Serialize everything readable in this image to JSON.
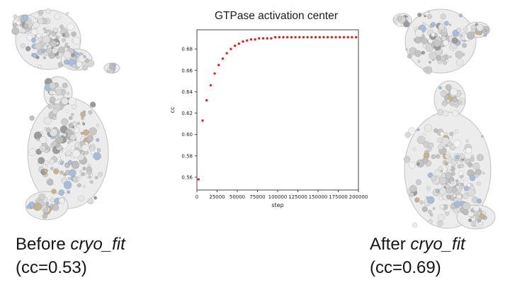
{
  "figure": {
    "background": "#ffffff"
  },
  "captions": {
    "before": {
      "prefix": "Before ",
      "italic": "cryo_fit",
      "cc": "(cc=0.53)"
    },
    "after": {
      "prefix": "After ",
      "italic": "cryo_fit",
      "cc": "(cc=0.69)"
    }
  },
  "molecules": {
    "before_label": "cryo-EM density map with fitted model, before fitting",
    "after_label": "cryo-EM density map with fitted model, after fitting"
  },
  "chart_data": {
    "type": "scatter",
    "title": "GTPase activation center",
    "xlabel": "step",
    "ylabel": "cc",
    "xlim": [
      0,
      200000
    ],
    "ylim": [
      0.548,
      0.698
    ],
    "xticks": [
      0,
      25000,
      50000,
      75000,
      100000,
      125000,
      150000,
      175000,
      200000
    ],
    "yticks": [
      0.56,
      0.58,
      0.6,
      0.62,
      0.64,
      0.66,
      0.68
    ],
    "grid": false,
    "legend": null,
    "marker_color": "#d62728",
    "points": [
      [
        2000,
        0.558
      ],
      [
        7000,
        0.613
      ],
      [
        12000,
        0.632
      ],
      [
        17000,
        0.646
      ],
      [
        22000,
        0.657
      ],
      [
        27000,
        0.665
      ],
      [
        32000,
        0.671
      ],
      [
        37000,
        0.676
      ],
      [
        42000,
        0.68
      ],
      [
        47000,
        0.683
      ],
      [
        52000,
        0.685
      ],
      [
        57000,
        0.687
      ],
      [
        62000,
        0.688
      ],
      [
        67000,
        0.689
      ],
      [
        72000,
        0.689
      ],
      [
        77000,
        0.69
      ],
      [
        82000,
        0.69
      ],
      [
        87000,
        0.69
      ],
      [
        92000,
        0.69
      ],
      [
        97000,
        0.691
      ],
      [
        102000,
        0.691
      ],
      [
        107000,
        0.691
      ],
      [
        112000,
        0.691
      ],
      [
        117000,
        0.691
      ],
      [
        122000,
        0.691
      ],
      [
        127000,
        0.691
      ],
      [
        132000,
        0.691
      ],
      [
        137000,
        0.691
      ],
      [
        142000,
        0.691
      ],
      [
        147000,
        0.691
      ],
      [
        152000,
        0.691
      ],
      [
        157000,
        0.691
      ],
      [
        162000,
        0.691
      ],
      [
        167000,
        0.691
      ],
      [
        172000,
        0.691
      ],
      [
        177000,
        0.691
      ],
      [
        182000,
        0.691
      ],
      [
        187000,
        0.691
      ],
      [
        192000,
        0.691
      ],
      [
        197000,
        0.691
      ]
    ]
  }
}
